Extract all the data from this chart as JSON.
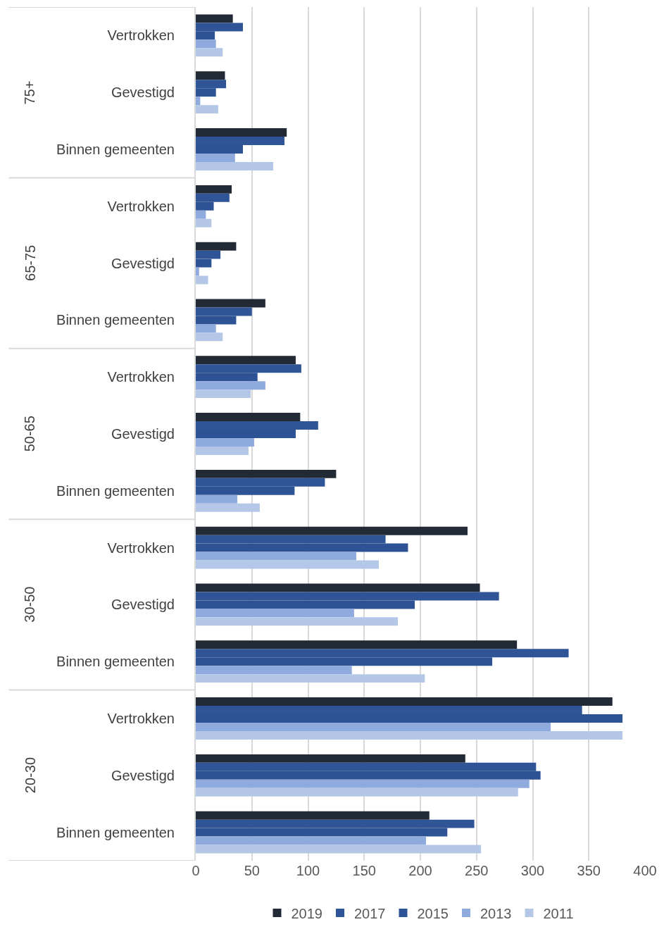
{
  "chart_data": {
    "type": "bar",
    "orientation": "horizontal",
    "categories": [
      "Vertrokken",
      "Gevestigd",
      "Binnen gemeenten",
      "Vertrokken",
      "Gevestigd",
      "Binnen gemeenten",
      "Vertrokken",
      "Gevestigd",
      "Binnen gemeenten",
      "Vertrokken",
      "Gevestigd",
      "Binnen gemeenten",
      "Vertrokken",
      "Gevestigd",
      "Binnen gemeenten"
    ],
    "annotations": [
      "75+",
      "65-75",
      "50-65",
      "30-50",
      "20-30"
    ],
    "series": [
      {
        "name": "2019",
        "color": "#222a35",
        "values": [
          33,
          26,
          81,
          32,
          36,
          62,
          89,
          93,
          125,
          242,
          253,
          286,
          371,
          240,
          208
        ]
      },
      {
        "name": "2017",
        "color": "#2f5597",
        "values": [
          42,
          27,
          79,
          30,
          22,
          50,
          94,
          109,
          115,
          169,
          270,
          332,
          344,
          303,
          248
        ]
      },
      {
        "name": "2015",
        "color": "#2e5395",
        "values": [
          17,
          18,
          42,
          16,
          14,
          36,
          55,
          89,
          88,
          189,
          195,
          264,
          380,
          307,
          224
        ]
      },
      {
        "name": "2013",
        "color": "#8faadc",
        "values": [
          18,
          4,
          35,
          9,
          3,
          18,
          62,
          52,
          37,
          143,
          141,
          139,
          316,
          297,
          205
        ]
      },
      {
        "name": "2011",
        "color": "#b4c7e7",
        "values": [
          24,
          20,
          69,
          14,
          11,
          24,
          49,
          47,
          57,
          163,
          180,
          204,
          380,
          287,
          254
        ]
      }
    ],
    "xlim": [
      0,
      400
    ],
    "xticks": [
      0,
      50,
      100,
      150,
      200,
      250,
      300,
      350,
      400
    ],
    "grid": "x",
    "legend": "bottom"
  }
}
